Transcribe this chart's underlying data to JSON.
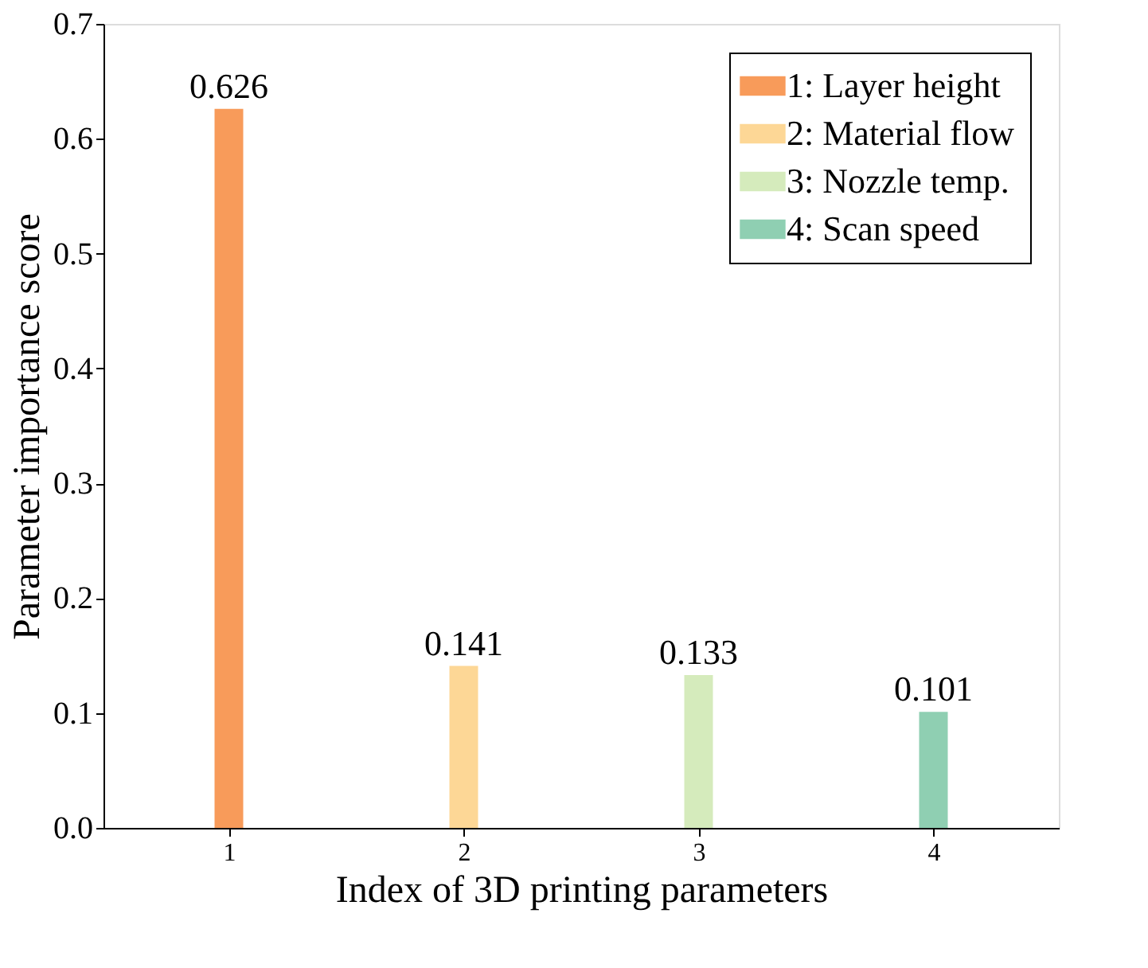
{
  "chart_data": {
    "type": "bar",
    "xlabel": "Index of 3D printing parameters",
    "ylabel": "Parameter importance score",
    "categories": [
      "1",
      "2",
      "3",
      "4"
    ],
    "series": [
      {
        "name": "1: Layer height",
        "color": "#f89b5a",
        "values": [
          0.626,
          null,
          null,
          null
        ]
      },
      {
        "name": "2: Material flow",
        "color": "#fdd796",
        "values": [
          null,
          0.141,
          null,
          null
        ]
      },
      {
        "name": "3: Nozzle temp.",
        "color": "#d5ebbc",
        "values": [
          null,
          null,
          0.133,
          null
        ]
      },
      {
        "name": "4: Scan speed",
        "color": "#8fcfb2",
        "values": [
          null,
          null,
          null,
          0.101
        ]
      }
    ],
    "ylim": [
      0,
      0.7
    ],
    "yticks": [
      {
        "value": 0,
        "label": "0.0"
      },
      0.1,
      0.2,
      0.3,
      0.4,
      0.5,
      0.6,
      0.7
    ],
    "data_labels": true,
    "grid": false,
    "legend": "top right"
  }
}
